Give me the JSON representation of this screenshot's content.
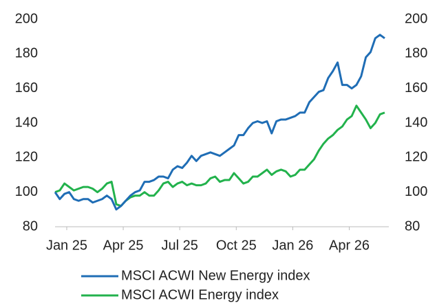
{
  "chart_data": {
    "type": "line",
    "x": [
      -0.62,
      -0.37,
      -0.12,
      0.13,
      0.38,
      0.63,
      0.88,
      1.13,
      1.38,
      1.63,
      1.88,
      2.13,
      2.38,
      2.63,
      2.88,
      3.13,
      3.38,
      3.63,
      3.88,
      4.13,
      4.38,
      4.63,
      4.88,
      5.13,
      5.38,
      5.63,
      5.88,
      6.13,
      6.38,
      6.63,
      6.88,
      7.13,
      7.38,
      7.63,
      7.88,
      8.13,
      8.38,
      8.63,
      8.88,
      9.13,
      9.38,
      9.63,
      9.88,
      10.13,
      10.38,
      10.63,
      10.88,
      11.13,
      11.38,
      11.63,
      11.88,
      12.13,
      12.38,
      12.63,
      12.88,
      13.13,
      13.38,
      13.63,
      13.88,
      14.13,
      14.38,
      14.63,
      14.88,
      15.13,
      15.38,
      15.63,
      15.88,
      16.13,
      16.38,
      16.63,
      16.88
    ],
    "series": [
      {
        "name": "MSCI ACWI New Energy index",
        "color": "#1f6db5",
        "values": [
          100,
          96,
          99,
          100,
          96,
          95,
          96,
          96,
          94,
          95,
          96,
          98,
          96,
          90,
          92,
          95,
          98,
          100,
          101,
          106,
          106,
          107,
          109,
          109,
          108,
          113,
          115,
          114,
          117,
          121,
          118,
          121,
          122,
          123,
          122,
          121,
          123,
          125,
          127,
          133,
          133,
          137,
          140,
          141,
          140,
          141,
          134,
          141,
          142,
          142,
          143,
          144,
          146,
          146,
          152,
          155,
          158,
          159,
          166,
          170,
          175,
          162,
          162,
          160,
          162,
          167,
          178,
          181,
          189,
          191,
          189
        ]
      },
      {
        "name": "MSCI ACWI Energy index",
        "color": "#22b24c",
        "values": [
          100,
          101,
          105,
          103,
          101,
          102,
          103,
          103,
          102,
          100,
          102,
          105,
          106,
          93,
          92,
          95,
          97,
          98,
          98,
          100,
          98,
          98,
          101,
          105,
          106,
          103,
          105,
          106,
          104,
          105,
          104,
          104,
          105,
          108,
          109,
          106,
          107,
          107,
          111,
          108,
          105,
          106,
          109,
          109,
          111,
          113,
          110,
          112,
          113,
          112,
          109,
          110,
          113,
          113,
          116,
          119,
          124,
          128,
          131,
          133,
          136,
          138,
          142,
          144,
          150,
          146,
          142,
          137,
          140,
          145,
          146
        ]
      }
    ],
    "xlim": [
      -0.62,
      17.1
    ],
    "xticks": [
      {
        "value": 0,
        "label": "Jan 25"
      },
      {
        "value": 3,
        "label": "Apr 25"
      },
      {
        "value": 6,
        "label": "Jul 25"
      },
      {
        "value": 9,
        "label": "Oct 25"
      },
      {
        "value": 12,
        "label": "Jan 26"
      },
      {
        "value": 15,
        "label": "Apr 26"
      }
    ],
    "ylim": [
      80,
      200
    ],
    "yticks": [
      80,
      100,
      120,
      140,
      160,
      180,
      200
    ],
    "y2lim": [
      80,
      200
    ],
    "y2ticks": [
      80,
      100,
      120,
      140,
      160,
      180,
      200
    ],
    "legend": "bottom"
  }
}
